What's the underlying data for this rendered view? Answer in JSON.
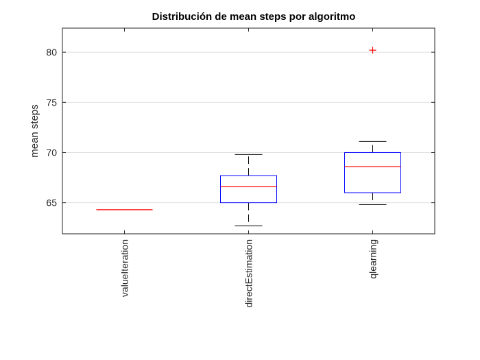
{
  "chart_data": {
    "type": "box",
    "title": "Distribución de mean steps por algoritmo",
    "xlabel": "",
    "ylabel": "mean steps",
    "ylim": [
      61.9,
      82.4
    ],
    "yticks": [
      65,
      70,
      75,
      80
    ],
    "grid": true,
    "categories": [
      "valueIteration",
      "directEstimation",
      "qlearning"
    ],
    "boxes": [
      {
        "min": 64.3,
        "q1": 64.3,
        "median": 64.3,
        "q3": 64.3,
        "max": 64.3,
        "outliers": []
      },
      {
        "min": 62.7,
        "q1": 65.0,
        "median": 66.6,
        "q3": 67.7,
        "max": 69.8,
        "outliers": []
      },
      {
        "min": 64.8,
        "q1": 66.0,
        "median": 68.6,
        "q3": 70.0,
        "max": 71.1,
        "outliers": [
          80.2
        ]
      }
    ],
    "colors": {
      "box": "#0000ff",
      "median": "#ff0000",
      "whisker": "#000000",
      "outlier": "#ff0000",
      "grid": "#dfdfdf"
    }
  }
}
